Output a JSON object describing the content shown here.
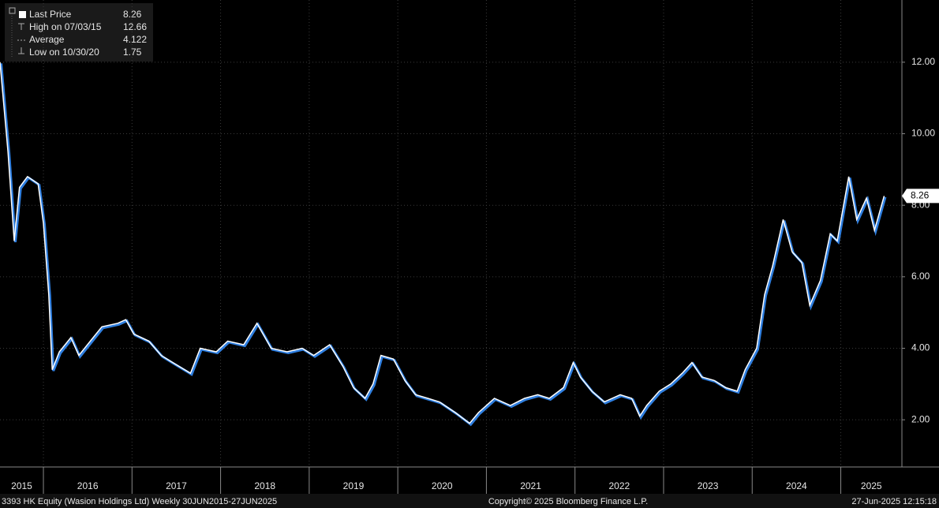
{
  "chart_data": {
    "type": "line",
    "x": [
      2015.51,
      2015.6,
      2015.67,
      2015.73,
      2015.82,
      2015.94,
      2016.0,
      2016.06,
      2016.1,
      2016.18,
      2016.31,
      2016.4,
      2016.53,
      2016.66,
      2016.84,
      2016.93,
      2017.02,
      2017.19,
      2017.33,
      2017.46,
      2017.66,
      2017.77,
      2017.95,
      2018.08,
      2018.26,
      2018.41,
      2018.57,
      2018.75,
      2018.92,
      2019.05,
      2019.23,
      2019.38,
      2019.5,
      2019.63,
      2019.72,
      2019.81,
      2019.95,
      2020.08,
      2020.2,
      2020.34,
      2020.47,
      2020.65,
      2020.81,
      2020.91,
      2021.09,
      2021.27,
      2021.43,
      2021.58,
      2021.71,
      2021.87,
      2021.98,
      2022.06,
      2022.19,
      2022.33,
      2022.51,
      2022.64,
      2022.73,
      2022.81,
      2022.95,
      2023.08,
      2023.21,
      2023.32,
      2023.43,
      2023.57,
      2023.7,
      2023.83,
      2023.92,
      2024.05,
      2024.14,
      2024.23,
      2024.35,
      2024.45,
      2024.56,
      2024.65,
      2024.77,
      2024.88,
      2024.96,
      2025.09,
      2025.18,
      2025.29,
      2025.38,
      2025.49
    ],
    "series": [
      {
        "name": "Last Price",
        "color": "#ffffff",
        "values": [
          12.0,
          9.5,
          7.0,
          8.5,
          8.8,
          8.6,
          7.5,
          5.5,
          3.4,
          3.9,
          4.3,
          3.8,
          4.2,
          4.6,
          4.7,
          4.8,
          4.4,
          4.2,
          3.8,
          3.6,
          3.3,
          4.0,
          3.9,
          4.2,
          4.1,
          4.7,
          4.0,
          3.9,
          4.0,
          3.8,
          4.1,
          3.5,
          2.9,
          2.6,
          3.0,
          3.8,
          3.7,
          3.1,
          2.7,
          2.6,
          2.5,
          2.2,
          1.9,
          2.2,
          2.6,
          2.4,
          2.6,
          2.7,
          2.6,
          2.9,
          3.6,
          3.2,
          2.8,
          2.5,
          2.7,
          2.6,
          2.1,
          2.4,
          2.8,
          3.0,
          3.3,
          3.6,
          3.2,
          3.1,
          2.9,
          2.8,
          3.4,
          4.0,
          5.5,
          6.3,
          7.6,
          6.7,
          6.4,
          5.2,
          5.9,
          7.2,
          7.0,
          8.8,
          7.6,
          8.2,
          7.3,
          8.26
        ]
      }
    ],
    "xlim": [
      2015.51,
      2025.69
    ],
    "xticks": [
      2016,
      2017,
      2018,
      2019,
      2020,
      2021,
      2022,
      2023,
      2024,
      2025
    ],
    "year_labels": [
      "2015",
      "2016",
      "2017",
      "2018",
      "2019",
      "2020",
      "2021",
      "2022",
      "2023",
      "2024",
      "2025"
    ],
    "ylim": [
      0.68,
      13.74
    ],
    "yticks": [
      {
        "value": 2,
        "label": "2.00"
      },
      {
        "value": 4,
        "label": "4.00"
      },
      {
        "value": 6,
        "label": "6.00"
      },
      {
        "value": 8,
        "label": "8.00"
      },
      {
        "value": 10,
        "label": "10.00"
      },
      {
        "value": 12,
        "label": "12.00"
      }
    ],
    "grid": true,
    "legend": [
      {
        "label": "Last Price",
        "value": 8.26
      },
      {
        "label": "High on 07/03/15",
        "value": 12.66
      },
      {
        "label": "Average",
        "value": 4.122
      },
      {
        "label": "Low on 10/30/20",
        "value": 1.75
      }
    ],
    "footer": {
      "left": "3393 HK Equity (Wasion Holdings Ltd)  Weekly 30JUN2015-27JUN2025",
      "center": "Copyright© 2025 Bloomberg Finance L.P.",
      "right": "27-Jun-2025 12:15:18"
    }
  }
}
